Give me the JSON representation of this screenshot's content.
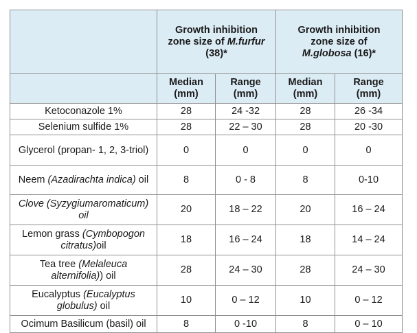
{
  "table": {
    "header": {
      "group1_line1": "Growth inhibition",
      "group1_line2_pre": "zone size of ",
      "group1_line2_em": "M.furfur",
      "group1_line3": "(38)*",
      "group2_line1": "Growth inhibition",
      "group2_line2": "zone size of",
      "group2_line3_em": "M.globosa",
      "group2_line3_post": " (16)*",
      "median_line1": "Median",
      "median_line2": "(mm)",
      "range_line1": "Range",
      "range_line2": "(mm)"
    },
    "rows": [
      {
        "plain1": "Ketoconazole 1%",
        "em": "",
        "plain2": "",
        "mf_median": "28",
        "mf_range": "24 -32",
        "mg_median": "28",
        "mg_range": "26 -34"
      },
      {
        "plain1": "Selenium sulfide 1%",
        "em": "",
        "plain2": "",
        "mf_median": "28",
        "mf_range": "22 – 30",
        "mg_median": "28",
        "mg_range": "20 -30"
      },
      {
        "plain1": "Glycerol (propan- 1, 2, 3-triol)",
        "em": "",
        "plain2": "",
        "mf_median": "0",
        "mf_range": "0",
        "mg_median": "0",
        "mg_range": "0"
      },
      {
        "plain1": "Neem ",
        "em": "(Azadirachta indica)",
        "plain2": " oil",
        "mf_median": "8",
        "mf_range": "0 - 8",
        "mg_median": "8",
        "mg_range": "0-10"
      },
      {
        "plain1": "",
        "em": "Clove (Syzygiumaromaticum) oil",
        "plain2": "",
        "mf_median": "20",
        "mf_range": "18 – 22",
        "mg_median": "20",
        "mg_range": "16 – 24"
      },
      {
        "plain1": "Lemon grass ",
        "em": "(Cymbopogon citratus)",
        "plain2": "oil",
        "mf_median": "18",
        "mf_range": "16 – 24",
        "mg_median": "18",
        "mg_range": "14 – 24"
      },
      {
        "plain1": "Tea tree ",
        "em": "(Melaleuca alternifolia)",
        "plain2": ") oil",
        "mf_median": "28",
        "mf_range": "24 – 30",
        "mg_median": "28",
        "mg_range": "24 – 30"
      },
      {
        "plain1": "Eucalyptus ",
        "em": "(Eucalyptus globulus)",
        "plain2": " oil",
        "mf_median": "10",
        "mf_range": "0 – 12",
        "mg_median": "10",
        "mg_range": "0 – 12"
      },
      {
        "plain1": "Ocimum Basilicum (basil) oil",
        "em": "",
        "plain2": "",
        "mf_median": "8",
        "mf_range": "0 -10",
        "mg_median": "8",
        "mg_range": "0 – 10"
      }
    ]
  }
}
